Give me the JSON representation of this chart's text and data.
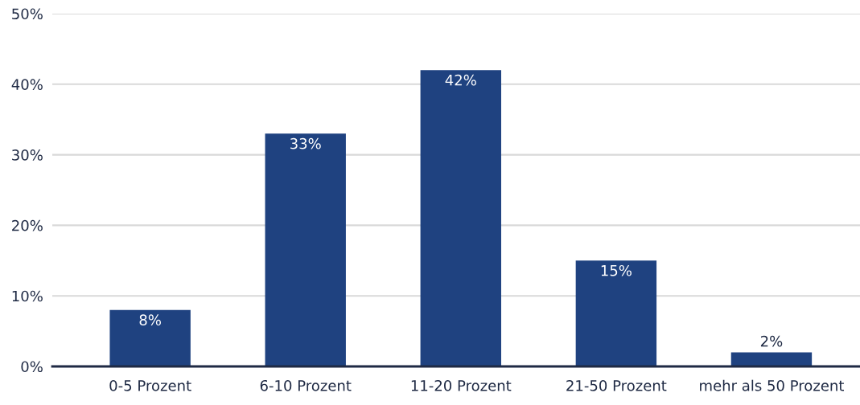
{
  "chart_data": {
    "type": "bar",
    "categories": [
      "0-5 Prozent",
      "6-10 Prozent",
      "11-20 Prozent",
      "21-50 Prozent",
      "mehr als 50 Prozent"
    ],
    "values": [
      8,
      33,
      42,
      15,
      2
    ],
    "color": "#1f4280",
    "value_labels": [
      "8%",
      "33%",
      "42%",
      "15%",
      "2%"
    ],
    "ylim": [
      0,
      50
    ],
    "yticks": [
      {
        "value": 0,
        "label": "0%"
      },
      {
        "value": 10,
        "label": "10%"
      },
      {
        "value": 20,
        "label": "20%"
      },
      {
        "value": 30,
        "label": "30%"
      },
      {
        "value": 40,
        "label": "40%"
      },
      {
        "value": 50,
        "label": "50%"
      }
    ],
    "grid": "y",
    "legend": false
  }
}
